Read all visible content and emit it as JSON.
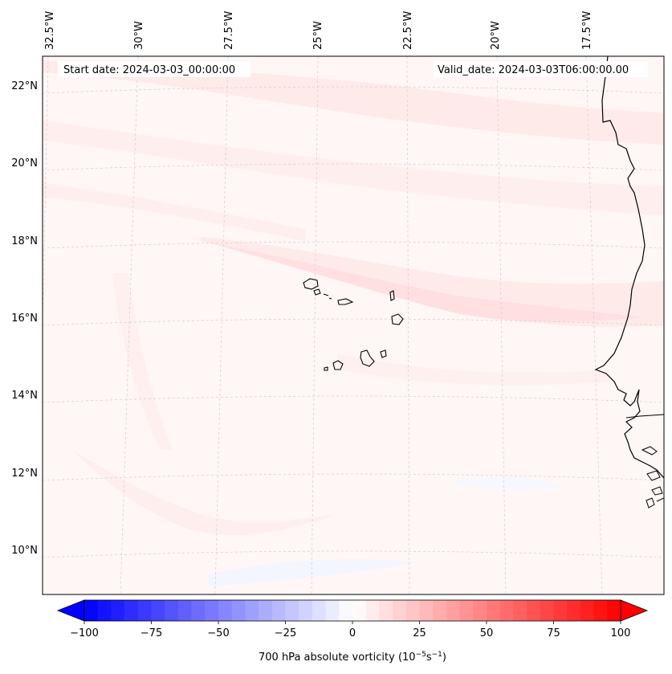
{
  "header": {
    "start_date": "Start date: 2024-03-03_00:00:00",
    "valid_date": "Valid_date: 2024-03-03T06:00:00.00"
  },
  "longitude_labels": [
    "32.5°W",
    "30°W",
    "27.5°W",
    "25°W",
    "22.5°W",
    "20°W",
    "17.5°W"
  ],
  "latitude_labels": [
    "22°N",
    "20°N",
    "18°N",
    "16°N",
    "14°N",
    "12°N",
    "10°N"
  ],
  "colorbar": {
    "ticks": [
      -100,
      -75,
      -50,
      -25,
      0,
      25,
      50,
      75,
      100
    ],
    "tick_labels": [
      "−100",
      "−75",
      "−50",
      "−25",
      "0",
      "25",
      "50",
      "75",
      "100"
    ],
    "label": "700 hPa absolute vorticity (10",
    "label_exp1": "−5",
    "label_mid": "s",
    "label_exp2": "−1",
    "label_end": ")",
    "min": -100,
    "max": 100,
    "colors": {
      "negative": "#0000ff",
      "zero": "#ffffff",
      "positive": "#ff0000"
    }
  },
  "map_colors": {
    "background": "#fff6f6",
    "band_light": "#ffeaea",
    "band_medium": "#ffdfdf",
    "patch_negative": "#f3f5ff",
    "coastline": "#000000"
  }
}
